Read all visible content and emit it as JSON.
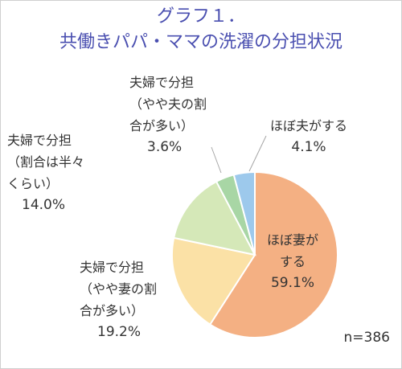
{
  "chart_data": {
    "type": "pie",
    "title": [
      "グラフ１．",
      "共働きパパ・ママの洗濯の分担状況"
    ],
    "categories": [
      [
        "ほぼ妻が",
        "する"
      ],
      [
        "夫婦で分担",
        "（やや妻の割",
        "合が多い）"
      ],
      [
        "夫婦で分担",
        "（割合は半々",
        "くらい）"
      ],
      [
        "夫婦で分担",
        "（やや夫の割",
        "合が多い）"
      ],
      [
        "ほぼ夫がする"
      ]
    ],
    "values": [
      59.1,
      19.2,
      14.0,
      3.6,
      4.1
    ],
    "value_labels": [
      "59.1%",
      "19.2%",
      "14.0%",
      "3.6%",
      "4.1%"
    ],
    "colors": [
      "#f4b083",
      "#fbe1a6",
      "#d5e8b8",
      "#a8d6a5",
      "#9dc9ec"
    ],
    "note": "n=386"
  }
}
